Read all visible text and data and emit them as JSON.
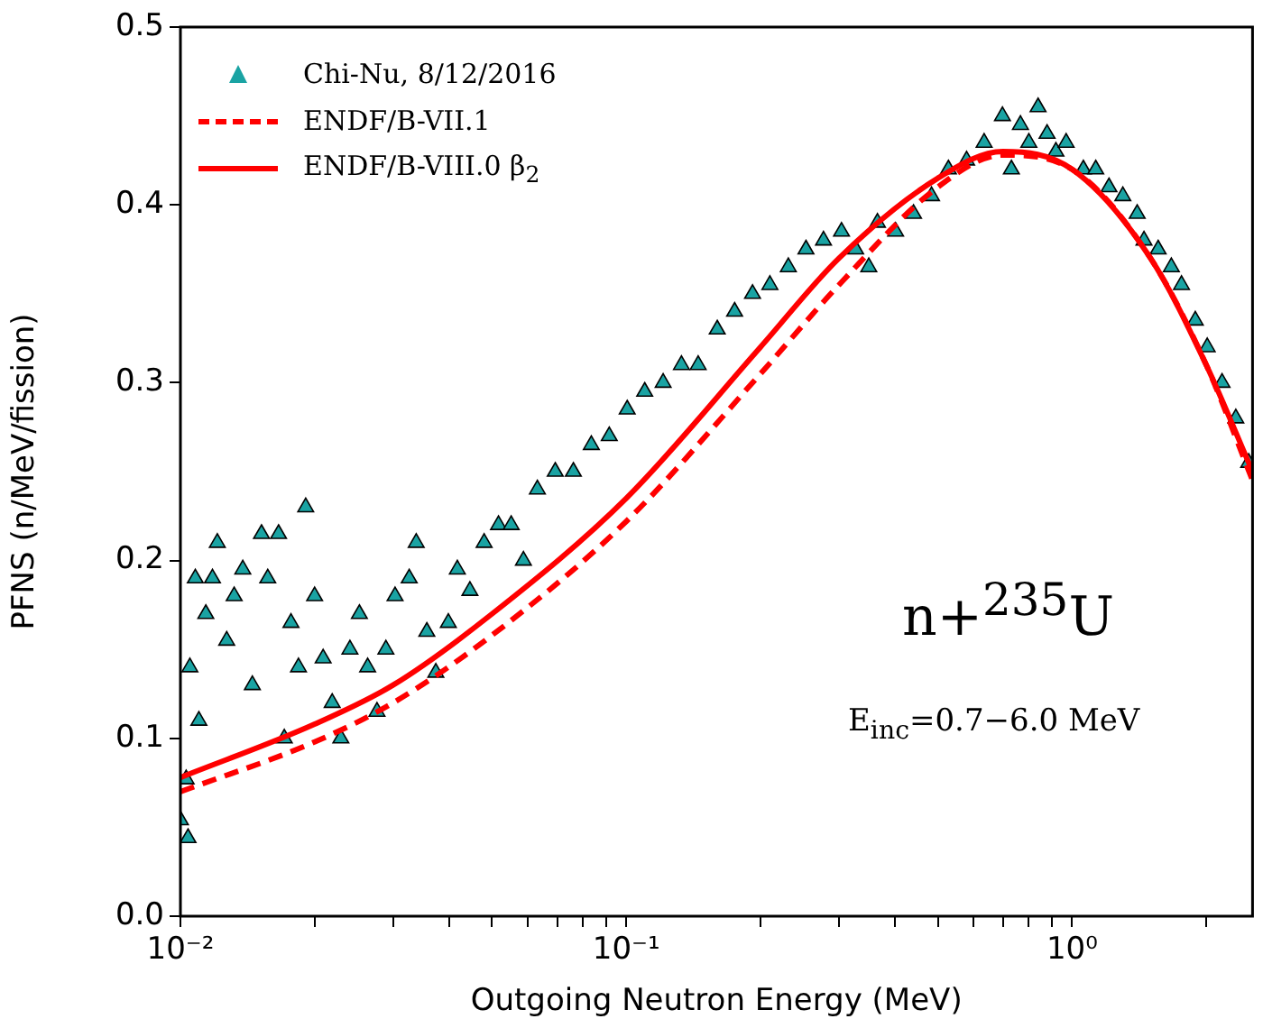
{
  "chart_data": {
    "type": "scatter",
    "xlabel": "Outgoing Neutron Energy (MeV)",
    "ylabel": "PFNS (n/MeV/fission)",
    "log": "x",
    "grid": false,
    "legend": "top left",
    "marker": "triangle",
    "xlim": [
      0.01,
      2.54
    ],
    "ylim": [
      0,
      0.5
    ],
    "xticks": [
      {
        "value": 0.01,
        "label": "10⁻²"
      },
      {
        "value": 0.02,
        "label": null
      },
      {
        "value": 0.03,
        "label": null
      },
      {
        "value": 0.04,
        "label": null
      },
      {
        "value": 0.05,
        "label": null
      },
      {
        "value": 0.06,
        "label": null
      },
      {
        "value": 0.07,
        "label": null
      },
      {
        "value": 0.08,
        "label": null
      },
      {
        "value": 0.09,
        "label": null
      },
      {
        "value": 0.1,
        "label": "10⁻¹"
      },
      {
        "value": 0.2,
        "label": null
      },
      {
        "value": 0.3,
        "label": null
      },
      {
        "value": 0.4,
        "label": null
      },
      {
        "value": 0.5,
        "label": null
      },
      {
        "value": 0.6,
        "label": null
      },
      {
        "value": 0.7,
        "label": null
      },
      {
        "value": 0.8,
        "label": null
      },
      {
        "value": 0.9,
        "label": null
      },
      {
        "value": 1,
        "label": "10⁰"
      },
      {
        "value": 2,
        "label": null
      }
    ],
    "yticks": [
      {
        "value": 0,
        "label": "0.0"
      },
      {
        "value": 0.1,
        "label": "0.1"
      },
      {
        "value": 0.2,
        "label": "0.2"
      },
      {
        "value": 0.3,
        "label": "0.3"
      },
      {
        "value": 0.4,
        "label": "0.4"
      },
      {
        "value": 0.5,
        "label": "0.5"
      }
    ],
    "annotations": [
      "n+$^{235}$U",
      "E$_{inc}$=0.7−6.0 MeV"
    ],
    "series": [
      {
        "name": "Chi-Nu, 8/12/2016",
        "color": "#1aa3a3",
        "x": [
          0.01,
          0.0103,
          0.0105,
          0.0108,
          0.011,
          0.0114,
          0.0118,
          0.0104,
          0.0121,
          0.0127,
          0.0132,
          0.0138,
          0.0145,
          0.0152,
          0.0157,
          0.0166,
          0.0171,
          0.0177,
          0.0184,
          0.0191,
          0.02,
          0.0209,
          0.0219,
          0.0229,
          0.024,
          0.0252,
          0.0263,
          0.0276,
          0.0289,
          0.0303,
          0.0326,
          0.0338,
          0.0357,
          0.0374,
          0.0399,
          0.0418,
          0.0446,
          0.048,
          0.0517,
          0.0552,
          0.0588,
          0.0632,
          0.0693,
          0.0761,
          0.0835,
          0.0916,
          0.1005,
          0.11,
          0.121,
          0.133,
          0.145,
          0.16,
          0.175,
          0.192,
          0.21,
          0.231,
          0.253,
          0.277,
          0.304,
          0.327,
          0.35,
          0.366,
          0.402,
          0.441,
          0.484,
          0.528,
          0.58,
          0.635,
          0.698,
          0.731,
          0.766,
          0.8,
          0.839,
          0.879,
          0.92,
          0.97,
          1.06,
          1.13,
          1.21,
          1.3,
          1.4,
          1.45,
          1.56,
          1.67,
          1.76,
          1.89,
          2.01,
          2.17,
          2.33,
          2.49
        ],
        "values": [
          0.054,
          0.077,
          0.14,
          0.19,
          0.11,
          0.17,
          0.19,
          0.044,
          0.21,
          0.155,
          0.18,
          0.195,
          0.13,
          0.215,
          0.19,
          0.215,
          0.1,
          0.165,
          0.14,
          0.23,
          0.18,
          0.145,
          0.12,
          0.1,
          0.15,
          0.17,
          0.14,
          0.115,
          0.15,
          0.18,
          0.19,
          0.21,
          0.16,
          0.137,
          0.165,
          0.195,
          0.183,
          0.21,
          0.22,
          0.22,
          0.2,
          0.24,
          0.25,
          0.25,
          0.265,
          0.27,
          0.285,
          0.295,
          0.3,
          0.31,
          0.31,
          0.33,
          0.34,
          0.35,
          0.355,
          0.365,
          0.375,
          0.38,
          0.385,
          0.375,
          0.365,
          0.39,
          0.385,
          0.395,
          0.405,
          0.42,
          0.425,
          0.435,
          0.45,
          0.42,
          0.445,
          0.435,
          0.455,
          0.44,
          0.43,
          0.435,
          0.42,
          0.42,
          0.41,
          0.405,
          0.395,
          0.38,
          0.375,
          0.365,
          0.355,
          0.335,
          0.32,
          0.3,
          0.28,
          0.255
        ]
      },
      {
        "name": "ENDF/B-VII.1",
        "type": "line",
        "line_style": "dashed",
        "marker": "none",
        "color": "#ff0000",
        "x": [
          0.01,
          0.02,
          0.03,
          0.05,
          0.1,
          0.2,
          0.3,
          0.5,
          0.7,
          1.0,
          1.5,
          2.0,
          2.54
        ],
        "values": [
          0.07,
          0.098,
          0.12,
          0.158,
          0.222,
          0.305,
          0.355,
          0.41,
          0.428,
          0.42,
          0.37,
          0.31,
          0.245
        ]
      },
      {
        "name": "ENDF/B-VIII.0 β$_{2}$",
        "type": "line",
        "line_style": "solid",
        "marker": "none",
        "color": "#ff0000",
        "x": [
          0.01,
          0.02,
          0.03,
          0.05,
          0.1,
          0.2,
          0.3,
          0.5,
          0.7,
          1.0,
          1.5,
          2.0,
          2.54
        ],
        "values": [
          0.078,
          0.108,
          0.13,
          0.17,
          0.235,
          0.32,
          0.37,
          0.415,
          0.43,
          0.42,
          0.37,
          0.31,
          0.25
        ]
      }
    ]
  }
}
